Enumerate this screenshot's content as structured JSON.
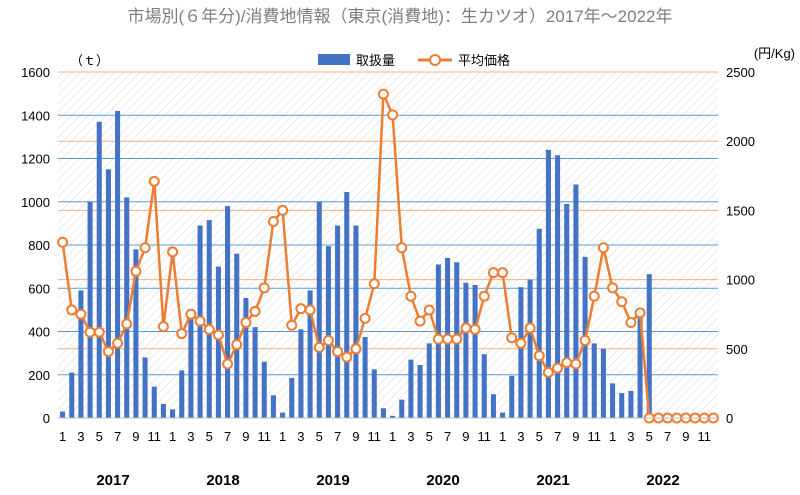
{
  "chart_data": {
    "type": "bar+line",
    "title": "市場別(６年分)/消費地情報（東京(消費地)：生カツオ）2017年～2022年",
    "y_left_unit": "（ｔ）",
    "y_right_unit": "(円/Kg)",
    "y_left_lim": [
      0,
      1600
    ],
    "y_left_ticks": [
      "0",
      "200",
      "400",
      "600",
      "800",
      "1000",
      "1200",
      "1400",
      "1600"
    ],
    "y_right_lim": [
      0,
      2500
    ],
    "y_right_ticks": [
      "0",
      "500",
      "1000",
      "1500",
      "2000",
      "2500"
    ],
    "years": [
      "2017",
      "2018",
      "2019",
      "2020",
      "2021",
      "2022"
    ],
    "month_tick_labels": [
      "1",
      "3",
      "5",
      "7",
      "9",
      "11"
    ],
    "series": [
      {
        "name": "取扱量",
        "type": "bar",
        "axis": "left",
        "color": "#4472c4",
        "values": [
          30,
          210,
          590,
          1000,
          1370,
          1150,
          1420,
          1020,
          780,
          280,
          145,
          65,
          40,
          220,
          460,
          890,
          915,
          700,
          980,
          760,
          555,
          420,
          260,
          105,
          25,
          185,
          410,
          590,
          1000,
          795,
          890,
          1045,
          890,
          375,
          225,
          45,
          10,
          85,
          270,
          245,
          345,
          710,
          740,
          720,
          625,
          615,
          295,
          110,
          25,
          195,
          605,
          640,
          875,
          1240,
          1215,
          990,
          1080,
          745,
          345,
          320,
          160,
          115,
          125,
          490,
          665,
          0,
          0,
          0,
          0,
          0,
          0,
          0
        ]
      },
      {
        "name": "平均価格",
        "type": "line",
        "axis": "right",
        "color": "#ed7d31",
        "values": [
          1270,
          780,
          750,
          620,
          620,
          480,
          540,
          680,
          1060,
          1230,
          1710,
          660,
          1200,
          610,
          750,
          700,
          640,
          600,
          390,
          530,
          690,
          770,
          940,
          1420,
          1500,
          670,
          790,
          780,
          510,
          560,
          480,
          440,
          500,
          720,
          970,
          2340,
          2190,
          1230,
          880,
          700,
          780,
          570,
          570,
          570,
          650,
          640,
          880,
          1050,
          1050,
          580,
          540,
          650,
          450,
          330,
          360,
          400,
          390,
          560,
          880,
          1230,
          940,
          840,
          690,
          760,
          0,
          0,
          0,
          0,
          0,
          0,
          0,
          0
        ]
      }
    ],
    "months_count": 72,
    "grid": true,
    "legend_position": "top-center"
  },
  "colors": {
    "bar": "#4472c4",
    "line": "#ed7d31",
    "left_grid": "#5b9bd5",
    "right_grid": "#f4b183",
    "title": "#7f7f7f"
  }
}
